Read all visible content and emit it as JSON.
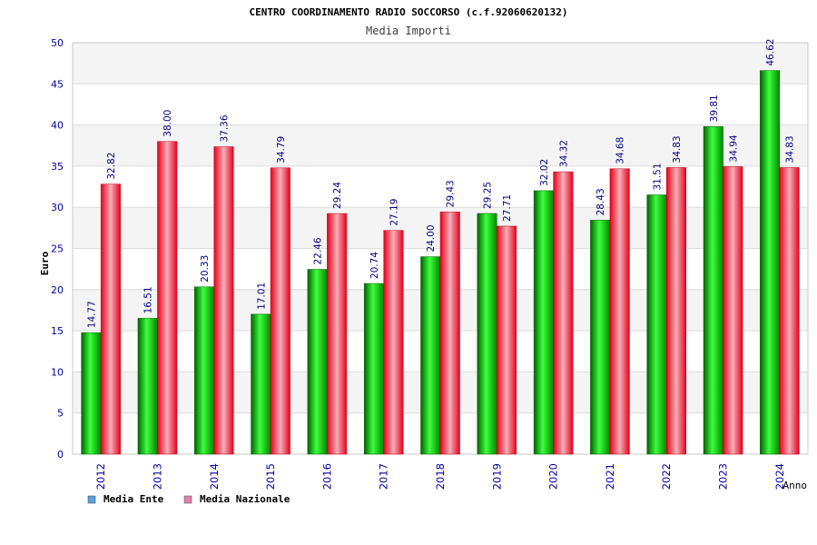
{
  "chart_data": {
    "type": "bar",
    "title": "CENTRO COORDINAMENTO RADIO SOCCORSO (c.f.92060620132)",
    "subtitle": "Media Importi",
    "xlabel": "Anno",
    "ylabel": "Euro",
    "ylim": [
      0,
      50
    ],
    "yticks": [
      0,
      5,
      10,
      15,
      20,
      25,
      30,
      35,
      40,
      45,
      50
    ],
    "categories": [
      "2012",
      "2013",
      "2014",
      "2015",
      "2016",
      "2017",
      "2018",
      "2019",
      "2020",
      "2021",
      "2022",
      "2023",
      "2024"
    ],
    "series": [
      {
        "name": "Media Ente",
        "values": [
          14.77,
          16.51,
          20.33,
          17.01,
          22.46,
          20.74,
          24.0,
          29.25,
          32.02,
          28.43,
          31.51,
          39.81,
          46.62
        ]
      },
      {
        "name": "Media Nazionale",
        "values": [
          32.82,
          38.0,
          37.36,
          34.79,
          29.24,
          27.19,
          29.43,
          27.71,
          34.32,
          34.68,
          34.83,
          34.94,
          34.83
        ]
      }
    ],
    "legend_position": "bottom-left",
    "grid": true
  },
  "colors": {
    "series_ente": "#00c000",
    "series_nazionale": "#e8001c",
    "legend_ente": "#5aa0e0",
    "legend_nazionale": "#e080a8",
    "tick_text": "#0000a0"
  }
}
